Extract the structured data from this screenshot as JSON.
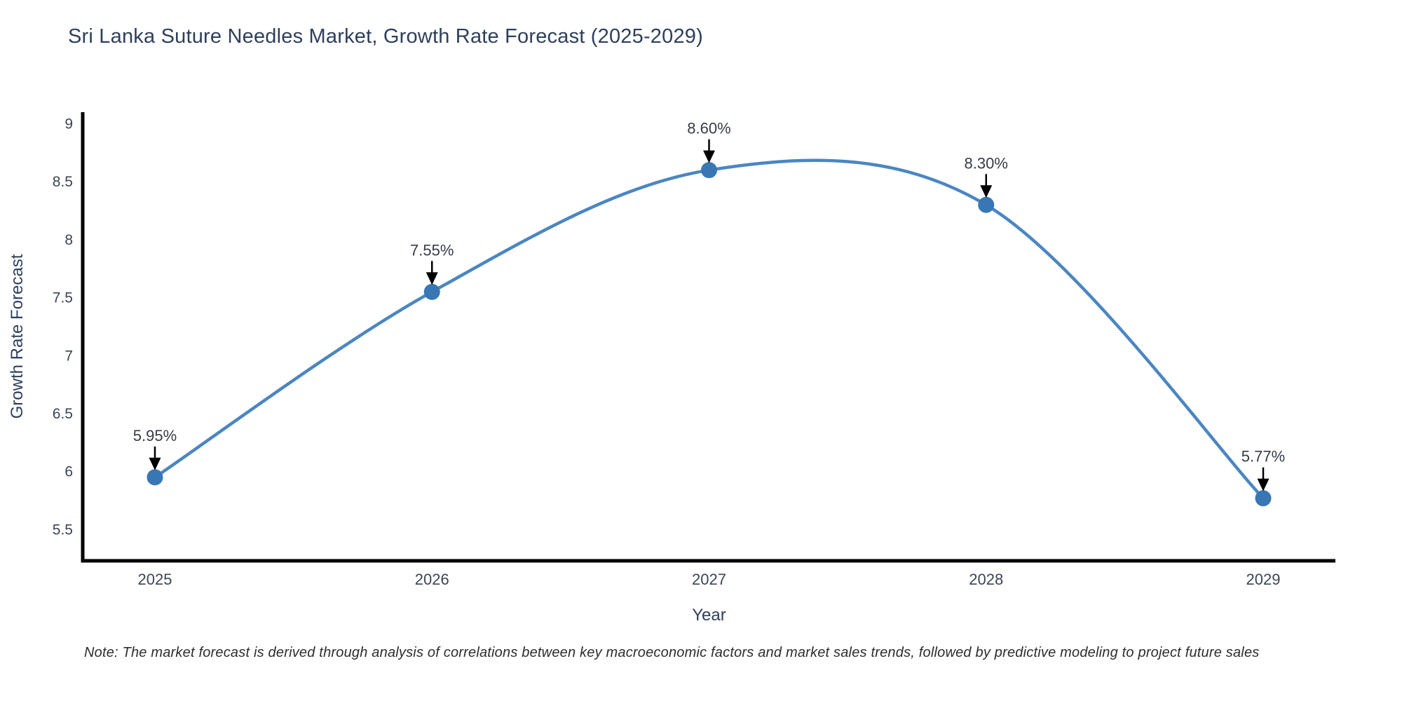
{
  "chart_data": {
    "type": "line",
    "title": "Sri Lanka Suture Needles Market, Growth Rate Forecast (2025-2029)",
    "categories": [
      "2025",
      "2026",
      "2027",
      "2028",
      "2029"
    ],
    "values": [
      5.95,
      7.55,
      8.6,
      8.3,
      5.77
    ],
    "point_labels": [
      "5.95%",
      "7.55%",
      "8.60%",
      "8.30%",
      "5.77%"
    ],
    "xlabel": "Year",
    "ylabel": "Growth Rate Forecast",
    "ylim": [
      5.23,
      9.1
    ],
    "yticks": [
      5.5,
      6,
      6.5,
      7,
      7.5,
      8,
      8.5,
      9
    ],
    "line_shape": "spline",
    "grid": false,
    "legend": false,
    "colors": {
      "line": "#4a86c2",
      "marker": "#3877b4",
      "axis": "#000000",
      "title_text": "#2e3f5c",
      "tick_text": "#3b4554",
      "axis_title_text": "#2e3f5c",
      "annotation_text": "#363c46",
      "arrow": "#000000"
    }
  },
  "footnote": {
    "text": "Note: The market forecast is derived through analysis of correlations between key macroeconomic factors and market sales trends, followed by predictive modeling to project future sales"
  }
}
